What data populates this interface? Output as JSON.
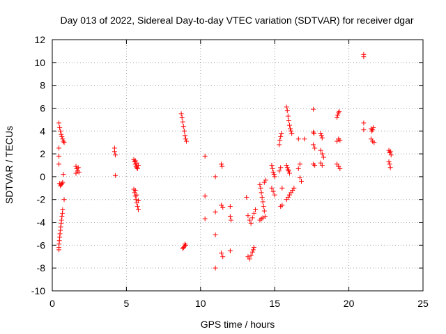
{
  "chart_data": {
    "type": "scatter",
    "title": "Day 013 of 2022, Sidereal Day-to-day VTEC variation (SDTVAR) for receiver dgar",
    "xlabel": "GPS time / hours",
    "ylabel": "SDTVAR / TECUs",
    "xlim": [
      0,
      25
    ],
    "ylim": [
      -10,
      12
    ],
    "xticks": [
      "0",
      "5",
      "10",
      "15",
      "20",
      "25"
    ],
    "yticks": [
      "-10",
      "-8",
      "-6",
      "-4",
      "-2",
      "0",
      "2",
      "4",
      "6",
      "8",
      "10",
      "12"
    ],
    "grid": true,
    "marker": "+",
    "color": "#ff0000",
    "series": [
      {
        "name": "SDTVAR",
        "points": [
          [
            0.45,
            4.7
          ],
          [
            0.5,
            4.3
          ],
          [
            0.55,
            4.0
          ],
          [
            0.6,
            3.7
          ],
          [
            0.65,
            3.5
          ],
          [
            0.7,
            3.3
          ],
          [
            0.75,
            3.1
          ],
          [
            0.8,
            3.0
          ],
          [
            0.45,
            2.5
          ],
          [
            0.45,
            1.8
          ],
          [
            0.45,
            1.1
          ],
          [
            0.5,
            -0.6
          ],
          [
            0.55,
            -0.8
          ],
          [
            0.6,
            -0.7
          ],
          [
            0.65,
            -0.6
          ],
          [
            0.7,
            -0.5
          ],
          [
            0.75,
            0.2
          ],
          [
            0.8,
            -2.0
          ],
          [
            0.7,
            -2.9
          ],
          [
            0.68,
            -3.2
          ],
          [
            0.65,
            -3.5
          ],
          [
            0.62,
            -3.8
          ],
          [
            0.6,
            -4.1
          ],
          [
            0.57,
            -4.4
          ],
          [
            0.55,
            -4.7
          ],
          [
            0.52,
            -5.0
          ],
          [
            0.5,
            -5.3
          ],
          [
            0.48,
            -5.6
          ],
          [
            0.46,
            -5.9
          ],
          [
            0.45,
            -6.2
          ],
          [
            0.45,
            -6.4
          ],
          [
            1.6,
            0.9
          ],
          [
            1.65,
            0.7
          ],
          [
            1.7,
            0.5
          ],
          [
            1.75,
            0.8
          ],
          [
            1.8,
            0.4
          ],
          [
            1.6,
            0.3
          ],
          [
            4.2,
            2.5
          ],
          [
            4.2,
            2.2
          ],
          [
            4.25,
            1.9
          ],
          [
            4.25,
            0.1
          ],
          [
            5.5,
            1.5
          ],
          [
            5.55,
            1.3
          ],
          [
            5.6,
            1.1
          ],
          [
            5.65,
            0.9
          ],
          [
            5.7,
            0.8
          ],
          [
            5.75,
            0.7
          ],
          [
            5.6,
            1.4
          ],
          [
            5.7,
            1.2
          ],
          [
            5.8,
            1.0
          ],
          [
            5.5,
            -1.1
          ],
          [
            5.55,
            -1.4
          ],
          [
            5.6,
            -1.7
          ],
          [
            5.65,
            -2.0
          ],
          [
            5.7,
            -2.3
          ],
          [
            5.75,
            -2.6
          ],
          [
            5.8,
            -2.9
          ],
          [
            5.6,
            -1.2
          ],
          [
            5.7,
            -1.6
          ],
          [
            5.8,
            -2.1
          ],
          [
            8.7,
            5.5
          ],
          [
            8.75,
            5.2
          ],
          [
            8.8,
            4.8
          ],
          [
            8.85,
            4.4
          ],
          [
            8.9,
            4.0
          ],
          [
            8.95,
            3.6
          ],
          [
            9.0,
            3.3
          ],
          [
            9.05,
            3.1
          ],
          [
            8.8,
            -6.3
          ],
          [
            8.9,
            -6.1
          ],
          [
            9.0,
            -6.0
          ],
          [
            8.85,
            -6.2
          ],
          [
            8.95,
            -5.9
          ],
          [
            10.3,
            1.8
          ],
          [
            10.3,
            -1.7
          ],
          [
            10.3,
            -3.7
          ],
          [
            11.0,
            0.0
          ],
          [
            11.0,
            -3.1
          ],
          [
            11.0,
            -5.1
          ],
          [
            11.0,
            -8.0
          ],
          [
            11.4,
            1.1
          ],
          [
            11.45,
            0.9
          ],
          [
            11.4,
            -2.5
          ],
          [
            11.5,
            -2.7
          ],
          [
            11.4,
            -6.7
          ],
          [
            11.5,
            -7.0
          ],
          [
            12.0,
            -2.6
          ],
          [
            12.0,
            -3.5
          ],
          [
            12.05,
            -3.8
          ],
          [
            12.0,
            -6.5
          ],
          [
            13.1,
            -1.8
          ],
          [
            13.2,
            -3.4
          ],
          [
            13.3,
            -3.8
          ],
          [
            13.4,
            -4.1
          ],
          [
            13.5,
            -3.6
          ],
          [
            13.6,
            -3.2
          ],
          [
            13.7,
            -2.9
          ],
          [
            13.2,
            -7.0
          ],
          [
            13.3,
            -7.2
          ],
          [
            13.4,
            -6.9
          ],
          [
            13.5,
            -6.6
          ],
          [
            13.55,
            -6.4
          ],
          [
            13.6,
            -6.2
          ],
          [
            14.0,
            -0.7
          ],
          [
            14.05,
            -1.0
          ],
          [
            14.1,
            -1.4
          ],
          [
            14.15,
            -1.8
          ],
          [
            14.2,
            -2.2
          ],
          [
            14.25,
            -2.6
          ],
          [
            14.3,
            -3.0
          ],
          [
            14.35,
            -3.5
          ],
          [
            14.0,
            -3.8
          ],
          [
            14.1,
            -3.7
          ],
          [
            14.2,
            -3.6
          ],
          [
            14.3,
            -0.5
          ],
          [
            14.4,
            -0.3
          ],
          [
            14.8,
            1.0
          ],
          [
            14.85,
            0.7
          ],
          [
            14.9,
            0.4
          ],
          [
            14.95,
            0.2
          ],
          [
            15.0,
            0.0
          ],
          [
            14.8,
            -1.0
          ],
          [
            14.9,
            -1.3
          ],
          [
            15.0,
            -1.6
          ],
          [
            15.3,
            2.8
          ],
          [
            15.35,
            3.2
          ],
          [
            15.4,
            3.5
          ],
          [
            15.45,
            3.8
          ],
          [
            15.3,
            0.5
          ],
          [
            15.4,
            0.8
          ],
          [
            15.5,
            -1.0
          ],
          [
            15.4,
            -2.6
          ],
          [
            15.5,
            -2.5
          ],
          [
            15.8,
            6.1
          ],
          [
            15.85,
            5.8
          ],
          [
            15.9,
            5.3
          ],
          [
            15.95,
            4.9
          ],
          [
            16.0,
            4.5
          ],
          [
            16.05,
            4.2
          ],
          [
            16.1,
            4.0
          ],
          [
            16.15,
            3.8
          ],
          [
            15.8,
            1.0
          ],
          [
            15.85,
            0.8
          ],
          [
            15.9,
            0.6
          ],
          [
            15.95,
            0.5
          ],
          [
            16.0,
            0.3
          ],
          [
            15.8,
            -2.0
          ],
          [
            15.9,
            -1.8
          ],
          [
            16.0,
            -1.6
          ],
          [
            16.1,
            -1.4
          ],
          [
            16.2,
            -1.2
          ],
          [
            16.3,
            -1.0
          ],
          [
            16.6,
            3.3
          ],
          [
            16.7,
            1.1
          ],
          [
            16.6,
            0.7
          ],
          [
            16.7,
            -0.1
          ],
          [
            16.8,
            -0.4
          ],
          [
            17.0,
            3.3
          ],
          [
            17.6,
            5.9
          ],
          [
            17.6,
            3.9
          ],
          [
            17.65,
            3.8
          ],
          [
            17.6,
            2.8
          ],
          [
            17.7,
            2.5
          ],
          [
            17.6,
            1.1
          ],
          [
            17.7,
            1.0
          ],
          [
            18.1,
            3.8
          ],
          [
            18.15,
            3.6
          ],
          [
            18.2,
            3.4
          ],
          [
            18.1,
            2.3
          ],
          [
            18.2,
            2.0
          ],
          [
            18.3,
            1.7
          ],
          [
            18.1,
            1.2
          ],
          [
            18.2,
            1.0
          ],
          [
            19.2,
            5.2
          ],
          [
            19.25,
            5.4
          ],
          [
            19.3,
            5.6
          ],
          [
            19.35,
            5.7
          ],
          [
            19.2,
            3.1
          ],
          [
            19.3,
            3.3
          ],
          [
            19.4,
            3.2
          ],
          [
            19.2,
            1.1
          ],
          [
            19.3,
            0.9
          ],
          [
            19.4,
            0.7
          ],
          [
            21.0,
            10.7
          ],
          [
            21.0,
            10.5
          ],
          [
            21.0,
            4.7
          ],
          [
            21.0,
            4.1
          ],
          [
            21.5,
            4.2
          ],
          [
            21.55,
            4.0
          ],
          [
            21.6,
            4.1
          ],
          [
            21.65,
            4.3
          ],
          [
            21.5,
            3.3
          ],
          [
            21.6,
            3.1
          ],
          [
            21.7,
            3.0
          ],
          [
            22.7,
            2.3
          ],
          [
            22.75,
            2.1
          ],
          [
            22.8,
            2.2
          ],
          [
            22.85,
            1.9
          ],
          [
            22.7,
            1.3
          ],
          [
            22.75,
            1.1
          ],
          [
            22.8,
            0.8
          ]
        ]
      }
    ]
  }
}
